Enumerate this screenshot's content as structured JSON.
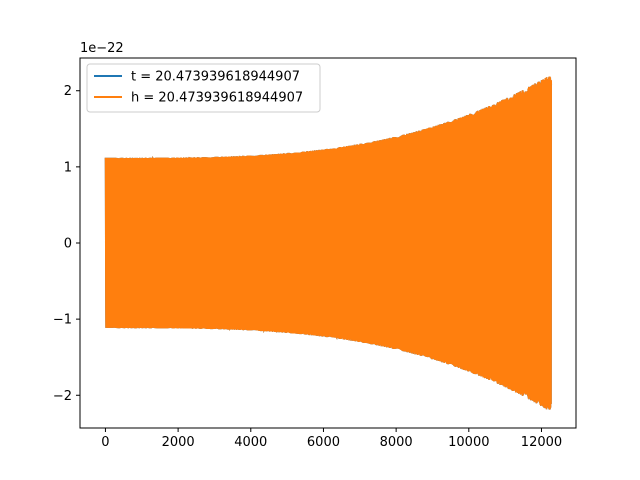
{
  "chart_data": {
    "type": "line",
    "title": "",
    "xlabel": "",
    "ylabel": "",
    "y_offset_text": "1e−22",
    "xlim": [
      -700,
      12950
    ],
    "ylim": [
      -2.43,
      2.43
    ],
    "x_ticks": [
      0,
      2000,
      4000,
      6000,
      8000,
      10000,
      12000
    ],
    "x_tick_labels": [
      "0",
      "2000",
      "4000",
      "6000",
      "8000",
      "10000",
      "12000"
    ],
    "y_ticks": [
      -2,
      -1,
      0,
      1,
      2
    ],
    "y_tick_labels": [
      "−2",
      "−1",
      "0",
      "1",
      "2"
    ],
    "grid": false,
    "legend_position": "upper-left",
    "series": [
      {
        "name": "t = 20.473939618944907",
        "color": "#1f77b4",
        "x_range": [
          0,
          12270
        ],
        "amplitude_start": 1.12,
        "amplitude_end": 2.22
      },
      {
        "name": "h = 20.473939618944907",
        "color": "#ff7f0e",
        "x_range": [
          0,
          12270
        ],
        "amplitude_start": 1.12,
        "amplitude_end": 2.22
      }
    ]
  }
}
